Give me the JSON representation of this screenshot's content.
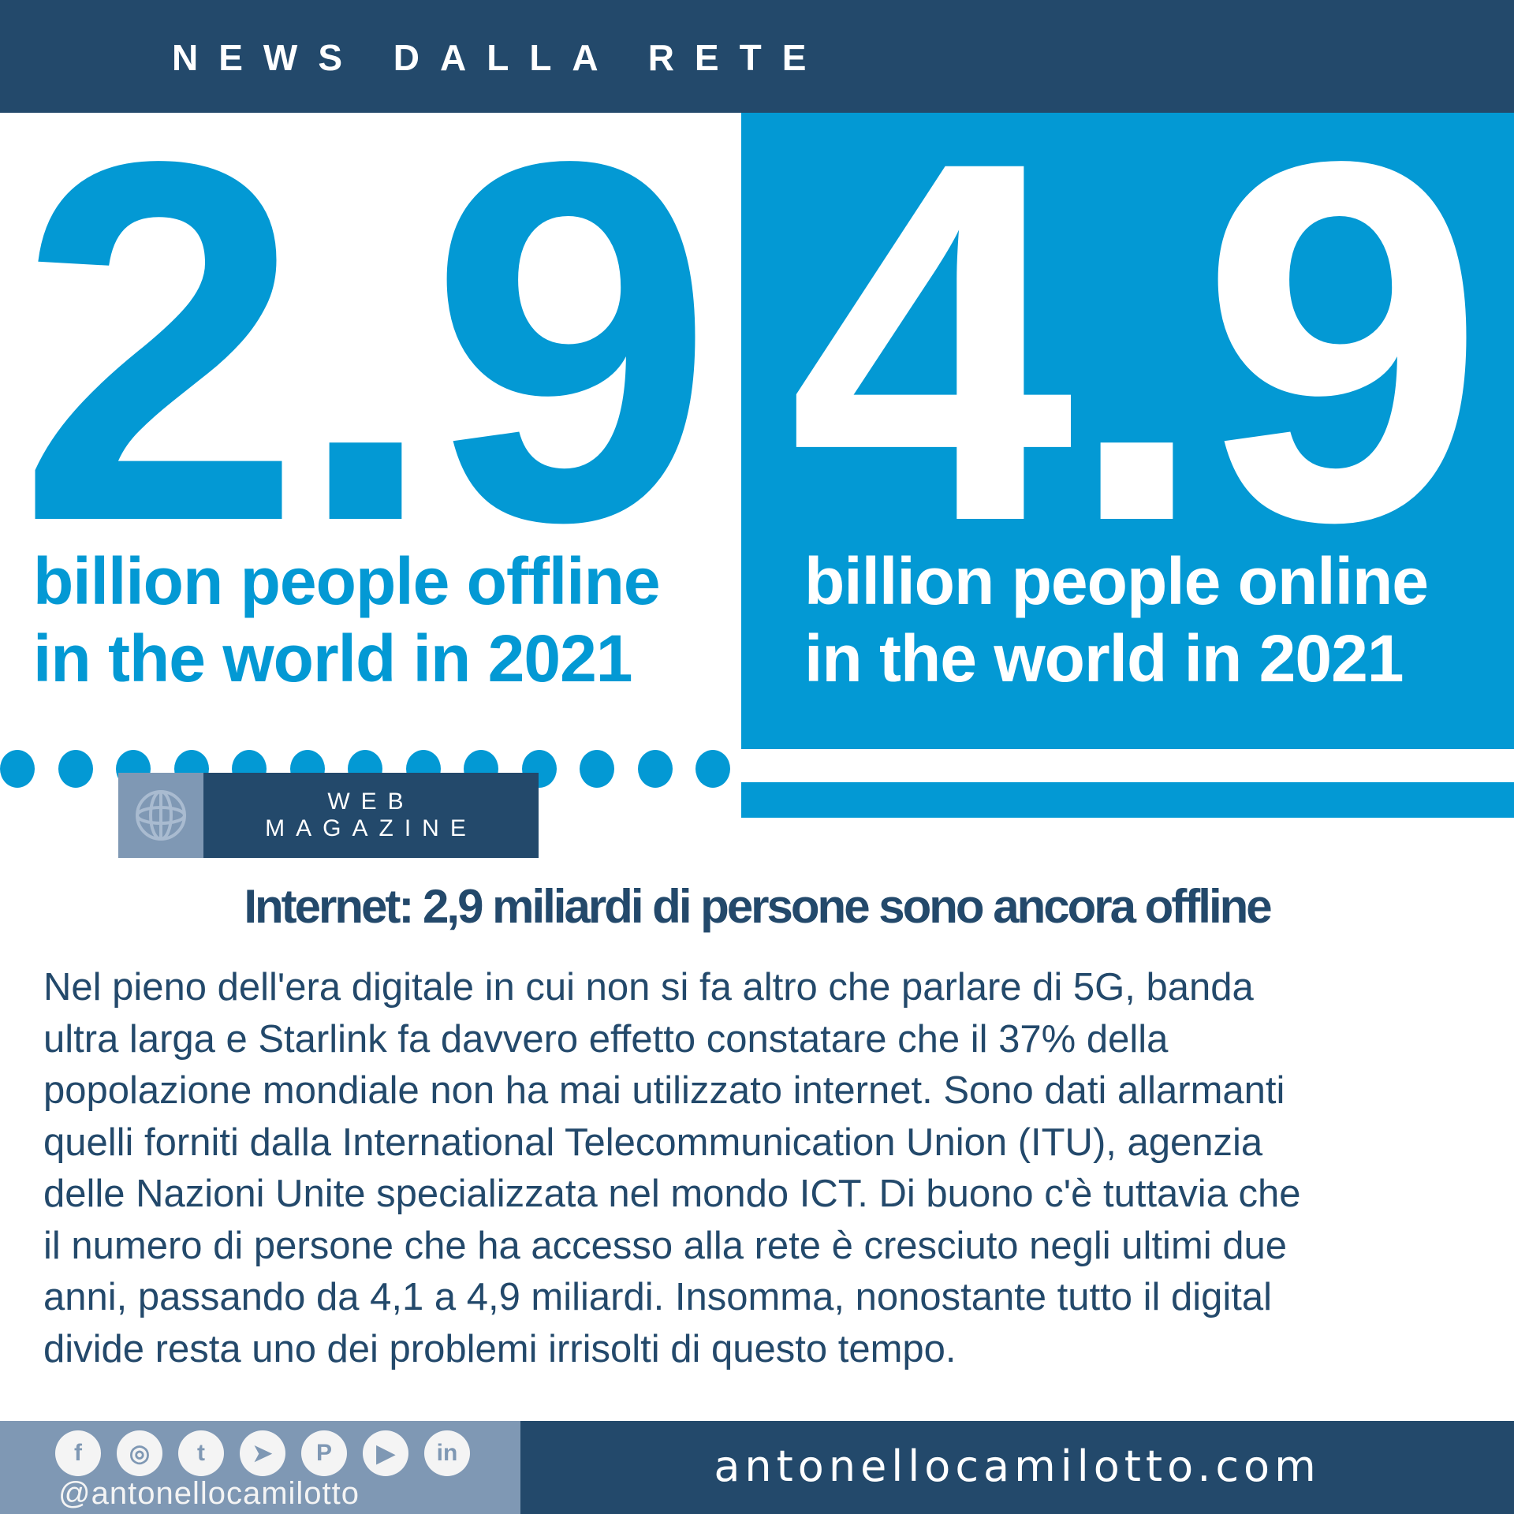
{
  "header": {
    "title": "NEWS DALLA RETE"
  },
  "hero": {
    "offline": {
      "number": "2.9",
      "line1": "billion people offline",
      "line2": "in the world in 2021"
    },
    "online": {
      "number": "4.9",
      "line1": "billion people online",
      "line2": "in the world in 2021"
    }
  },
  "badge": {
    "icon": "globe-icon",
    "line1": "WEB",
    "line2": "MAGAZINE"
  },
  "article": {
    "title": "Internet: 2,9 miliardi di persone sono ancora offline",
    "lines": [
      "Nel pieno dell'era digitale in cui non si fa altro che parlare di 5G, banda",
      "ultra larga e Starlink fa davvero effetto constatare che il 37% della",
      "popolazione mondiale non ha mai utilizzato internet. Sono dati allarmanti",
      "quelli forniti dalla International Telecommunication Union (ITU), agenzia",
      "delle Nazioni Unite specializzata nel mondo ICT. Di buono c'è tuttavia che",
      "il numero di persone che ha accesso alla rete è cresciuto negli ultimi due",
      "anni, passando da 4,1 a 4,9 miliardi. Insomma, nonostante tutto il digital",
      "divide resta uno dei problemi irrisolti di questo tempo."
    ]
  },
  "footer": {
    "social": [
      {
        "icon": "facebook-icon",
        "glyph": "f"
      },
      {
        "icon": "instagram-icon",
        "glyph": "◎"
      },
      {
        "icon": "twitter-icon",
        "glyph": "t"
      },
      {
        "icon": "telegram-icon",
        "glyph": "➤"
      },
      {
        "icon": "pinterest-icon",
        "glyph": "P"
      },
      {
        "icon": "youtube-icon",
        "glyph": "▶"
      },
      {
        "icon": "linkedin-icon",
        "glyph": "in"
      }
    ],
    "handle": "@antonellocamilotto",
    "website": "antonellocamilotto.com"
  },
  "colors": {
    "navy": "#23496b",
    "blue": "#0399d4",
    "slate": "#7f98b4"
  }
}
